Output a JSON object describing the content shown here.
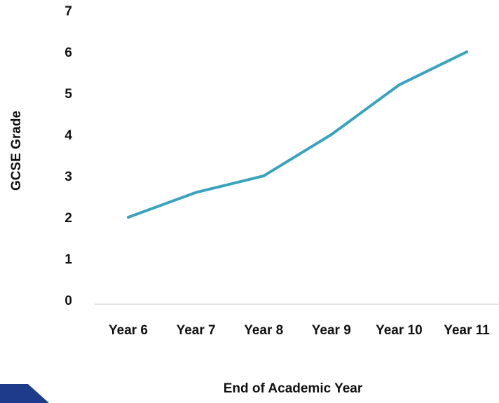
{
  "chart_data": {
    "type": "line",
    "title": "",
    "xlabel": "End of Academic Year",
    "ylabel": "GCSE Grade",
    "categories": [
      "Year 6",
      "Year 7",
      "Year 8",
      "Year 9",
      "Year 10",
      "Year 11"
    ],
    "series": [
      {
        "values": [
          2,
          2.6,
          3,
          4,
          5.2,
          6
        ]
      }
    ],
    "yticks": [
      "0",
      "1",
      "2",
      "3",
      "4",
      "5",
      "6",
      "7"
    ],
    "ylim": [
      0,
      7
    ],
    "grid": false,
    "legend": "none",
    "colors": {
      "line": "#3aa3bf",
      "axis": "#d9d9d9",
      "corner_shape": "#1e3a8a"
    }
  }
}
